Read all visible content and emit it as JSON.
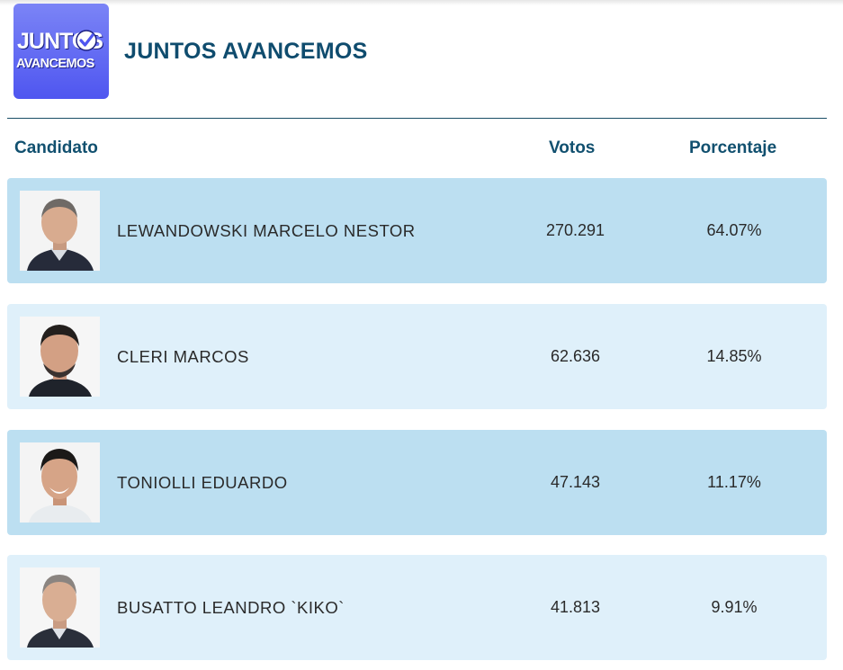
{
  "party": {
    "logo_line1": "JUNTOS",
    "logo_line2": "AVANCEMOS",
    "name": "JUNTOS AVANCEMOS"
  },
  "table": {
    "headers": {
      "candidate": "Candidato",
      "votes": "Votos",
      "percent": "Porcentaje"
    },
    "rows": [
      {
        "name": "LEWANDOWSKI MARCELO NESTOR",
        "votes": "270.291",
        "percent": "64.07%",
        "shade": "dark"
      },
      {
        "name": "CLERI MARCOS",
        "votes": "62.636",
        "percent": "14.85%",
        "shade": "light"
      },
      {
        "name": "TONIOLLI EDUARDO",
        "votes": "47.143",
        "percent": "11.17%",
        "shade": "dark"
      },
      {
        "name": "BUSATTO LEANDRO `KIKO`",
        "votes": "41.813",
        "percent": "9.91%",
        "shade": "light"
      }
    ]
  },
  "colors": {
    "title": "#0f4c6e",
    "row_dark": "#bcdff1",
    "row_light": "#dff0fa",
    "logo": "#5a61f2"
  }
}
